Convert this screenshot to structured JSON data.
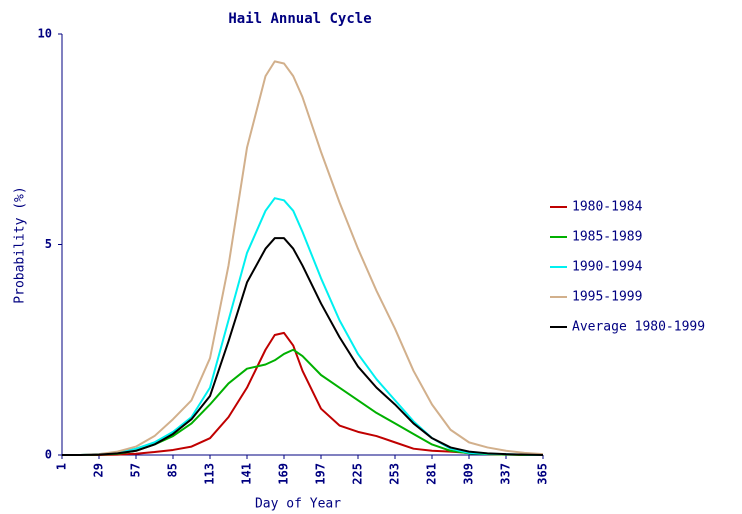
{
  "chart_data": {
    "type": "line",
    "title": "Hail Annual Cycle",
    "x_label": "Day of Year",
    "y_label": "Probability (%)",
    "x": [
      1,
      15,
      29,
      43,
      57,
      71,
      85,
      99,
      113,
      127,
      141,
      155,
      162,
      169,
      176,
      183,
      197,
      211,
      225,
      239,
      253,
      267,
      281,
      295,
      309,
      323,
      337,
      351,
      365
    ],
    "series": [
      {
        "name": "1980-1984",
        "color": "#c00000",
        "values": [
          0,
          0,
          0,
          0.01,
          0.03,
          0.07,
          0.12,
          0.2,
          0.4,
          0.9,
          1.6,
          2.5,
          2.85,
          2.9,
          2.6,
          2.0,
          1.1,
          0.7,
          0.55,
          0.45,
          0.3,
          0.15,
          0.1,
          0.08,
          0.05,
          0.02,
          0.01,
          0,
          0
        ]
      },
      {
        "name": "1985-1989",
        "color": "#00b000",
        "values": [
          0,
          0,
          0.01,
          0.03,
          0.1,
          0.25,
          0.45,
          0.75,
          1.2,
          1.7,
          2.05,
          2.15,
          2.25,
          2.4,
          2.5,
          2.35,
          1.9,
          1.6,
          1.3,
          1.0,
          0.75,
          0.5,
          0.25,
          0.1,
          0.04,
          0.02,
          0.01,
          0,
          0
        ]
      },
      {
        "name": "1990-1994",
        "color": "#00f0f0",
        "values": [
          0,
          0,
          0.02,
          0.06,
          0.15,
          0.3,
          0.55,
          0.9,
          1.6,
          3.2,
          4.8,
          5.8,
          6.1,
          6.05,
          5.8,
          5.3,
          4.2,
          3.2,
          2.4,
          1.8,
          1.3,
          0.8,
          0.4,
          0.15,
          0.05,
          0.03,
          0.02,
          0.01,
          0
        ]
      },
      {
        "name": "1995-1999",
        "color": "#d2b08c",
        "values": [
          0,
          0,
          0.02,
          0.08,
          0.2,
          0.45,
          0.85,
          1.3,
          2.3,
          4.5,
          7.3,
          9.0,
          9.35,
          9.3,
          9.0,
          8.5,
          7.2,
          6.0,
          4.9,
          3.9,
          3.0,
          2.0,
          1.2,
          0.6,
          0.3,
          0.18,
          0.1,
          0.05,
          0.02
        ]
      },
      {
        "name": "Average 1980-1999",
        "color": "#000000",
        "values": [
          0,
          0,
          0.01,
          0.04,
          0.1,
          0.25,
          0.5,
          0.85,
          1.4,
          2.7,
          4.1,
          4.9,
          5.15,
          5.15,
          4.9,
          4.5,
          3.6,
          2.8,
          2.1,
          1.6,
          1.2,
          0.75,
          0.4,
          0.18,
          0.08,
          0.04,
          0.02,
          0.01,
          0
        ]
      }
    ],
    "xlim": [
      1,
      365
    ],
    "xticks": [
      1,
      29,
      57,
      85,
      113,
      141,
      169,
      197,
      225,
      253,
      281,
      309,
      337,
      365
    ],
    "ylim": [
      0,
      10
    ],
    "yticks": [
      0,
      5,
      10
    ],
    "legend": "right"
  }
}
